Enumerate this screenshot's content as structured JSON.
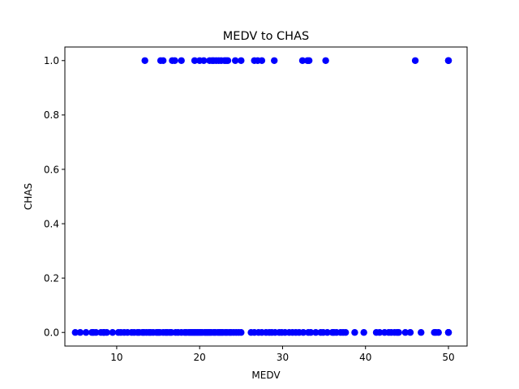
{
  "chart_data": {
    "type": "scatter",
    "title": "MEDV to CHAS",
    "xlabel": "MEDV",
    "ylabel": "CHAS",
    "xlim": [
      3.75,
      52.25
    ],
    "ylim": [
      -0.05,
      1.05
    ],
    "xticks": [
      10,
      20,
      30,
      40,
      50
    ],
    "xtick_labels": [
      "10",
      "20",
      "30",
      "40",
      "50"
    ],
    "yticks": [
      0.0,
      0.2,
      0.4,
      0.6,
      0.8,
      1.0
    ],
    "ytick_labels": [
      "0.0",
      "0.2",
      "0.4",
      "0.6",
      "0.8",
      "1.0"
    ],
    "grid": false,
    "marker_color": "#0000ff",
    "series": [
      {
        "points_chas_1": [
          13.4,
          15.3,
          15.6,
          16.7,
          17.0,
          17.8,
          19.4,
          20.0,
          20.5,
          21.2,
          21.5,
          21.7,
          22.0,
          22.3,
          22.6,
          23.0,
          23.2,
          23.4,
          24.3,
          25.0,
          26.6,
          27.0,
          27.5,
          29.0,
          32.4,
          33.0,
          33.2,
          35.2,
          46.0,
          50.0,
          50.0,
          50.0
        ],
        "points_chas_0": [
          5.0,
          5.6,
          6.3,
          7.0,
          7.2,
          7.5,
          8.1,
          8.4,
          8.5,
          8.8,
          9.5,
          10.2,
          10.5,
          10.9,
          11.3,
          11.8,
          12.1,
          12.5,
          12.7,
          13.1,
          13.3,
          13.6,
          13.9,
          14.1,
          14.4,
          14.8,
          15.0,
          15.2,
          15.6,
          15.9,
          16.1,
          16.4,
          16.6,
          17.1,
          17.4,
          17.8,
          18.2,
          18.4,
          18.7,
          18.9,
          19.1,
          19.3,
          19.5,
          19.7,
          19.9,
          20.1,
          20.3,
          20.6,
          20.8,
          21.0,
          21.2,
          21.4,
          21.7,
          21.9,
          22.2,
          22.4,
          22.6,
          22.8,
          23.1,
          23.3,
          23.6,
          23.8,
          24.1,
          24.4,
          24.7,
          25.0,
          26.2,
          26.6,
          27.1,
          27.5,
          28.0,
          28.4,
          28.7,
          29.1,
          29.6,
          29.9,
          30.3,
          30.8,
          31.2,
          31.6,
          32.0,
          32.5,
          33.1,
          33.4,
          34.0,
          34.6,
          34.9,
          35.4,
          36.0,
          36.2,
          36.5,
          37.0,
          37.3,
          37.6,
          38.7,
          39.8,
          41.3,
          41.7,
          42.3,
          42.8,
          43.1,
          43.5,
          43.8,
          44.0,
          44.8,
          45.4,
          46.7,
          48.3,
          48.5,
          48.8,
          50.0,
          50.0,
          50.0
        ]
      }
    ]
  }
}
